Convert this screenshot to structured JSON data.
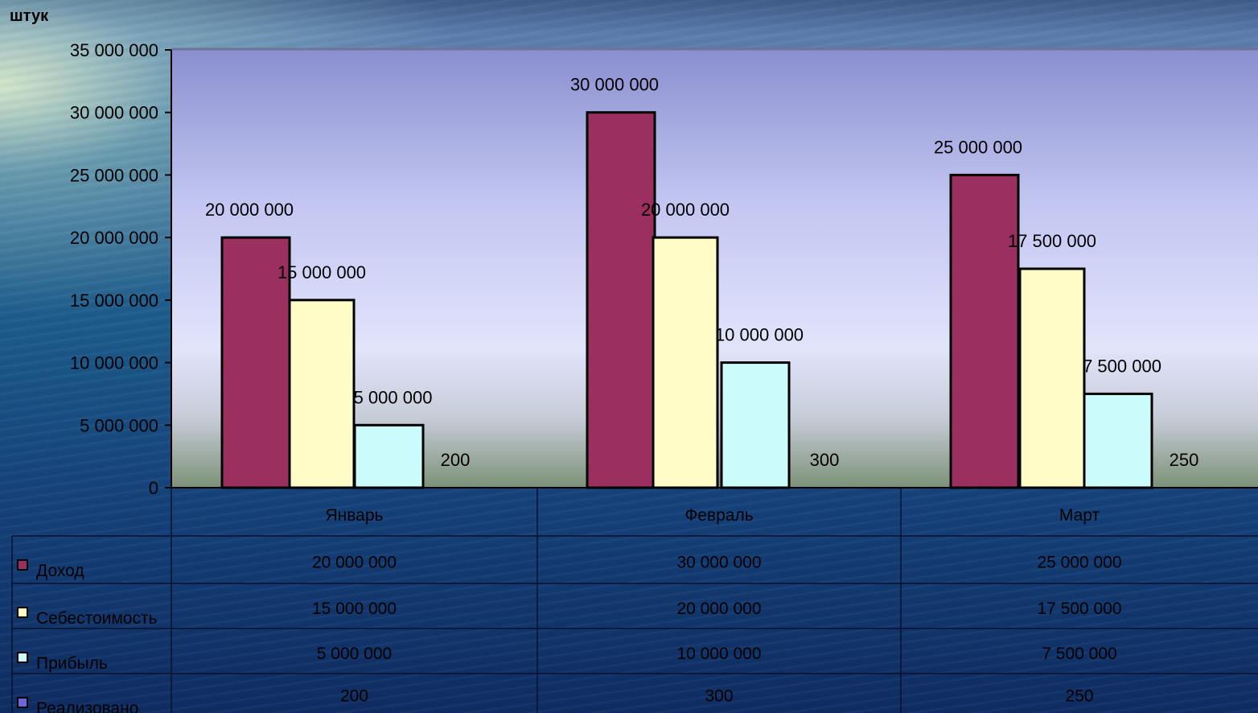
{
  "chart_data": {
    "type": "bar",
    "ylabel": "штук",
    "categories": [
      "Январь",
      "Февраль",
      "Март"
    ],
    "series": [
      {
        "name": "Доход",
        "values": [
          20000000,
          30000000,
          25000000
        ],
        "labels": [
          "20 000 000",
          "30 000 000",
          "25 000 000"
        ],
        "color": "#9b2f5f"
      },
      {
        "name": "Себестоимость",
        "values": [
          15000000,
          20000000,
          17500000
        ],
        "labels": [
          "15 000 000",
          "20 000 000",
          "17 500 000"
        ],
        "color": "#fffcc8"
      },
      {
        "name": "Прибыль",
        "values": [
          5000000,
          10000000,
          7500000
        ],
        "labels": [
          "5 000 000",
          "10 000 000",
          "7 500 000"
        ],
        "color": "#ccfbfb"
      },
      {
        "name": "Реализовано",
        "values": [
          200,
          300,
          250
        ],
        "labels": [
          "200",
          "300",
          "250"
        ],
        "color": "#6b66d9"
      }
    ],
    "ylim": [
      0,
      35000000
    ],
    "yticks": [
      "0",
      "5 000 000",
      "10 000 000",
      "15 000 000",
      "20 000 000",
      "25 000 000",
      "30 000 000",
      "35 000 000"
    ],
    "grid": false,
    "legend": "data-table"
  }
}
